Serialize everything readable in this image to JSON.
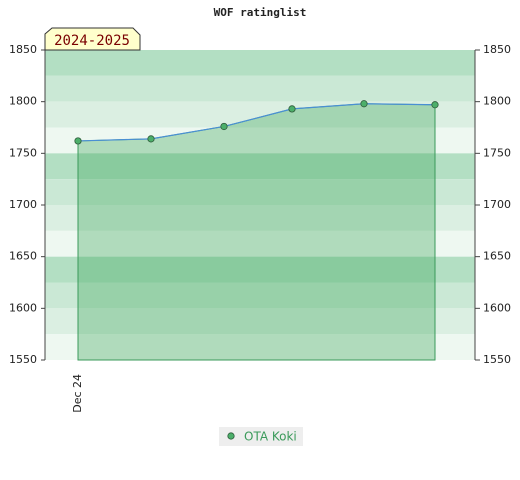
{
  "chart_data": {
    "type": "line",
    "title": "WOF ratinglist",
    "annotation": "2024-2025",
    "categories": [
      "Dec 24",
      null,
      null,
      null,
      null,
      null
    ],
    "series": [
      {
        "name": "OTA Koki",
        "color": "#4caf6a",
        "line_color": "#4a8fd4",
        "values": [
          1762,
          1764,
          1776,
          1793,
          1798,
          1797
        ]
      }
    ],
    "ylim": [
      1550,
      1850
    ],
    "yticks": [
      1550,
      1600,
      1650,
      1700,
      1750,
      1800,
      1850
    ],
    "area": true,
    "right_axis": true
  }
}
